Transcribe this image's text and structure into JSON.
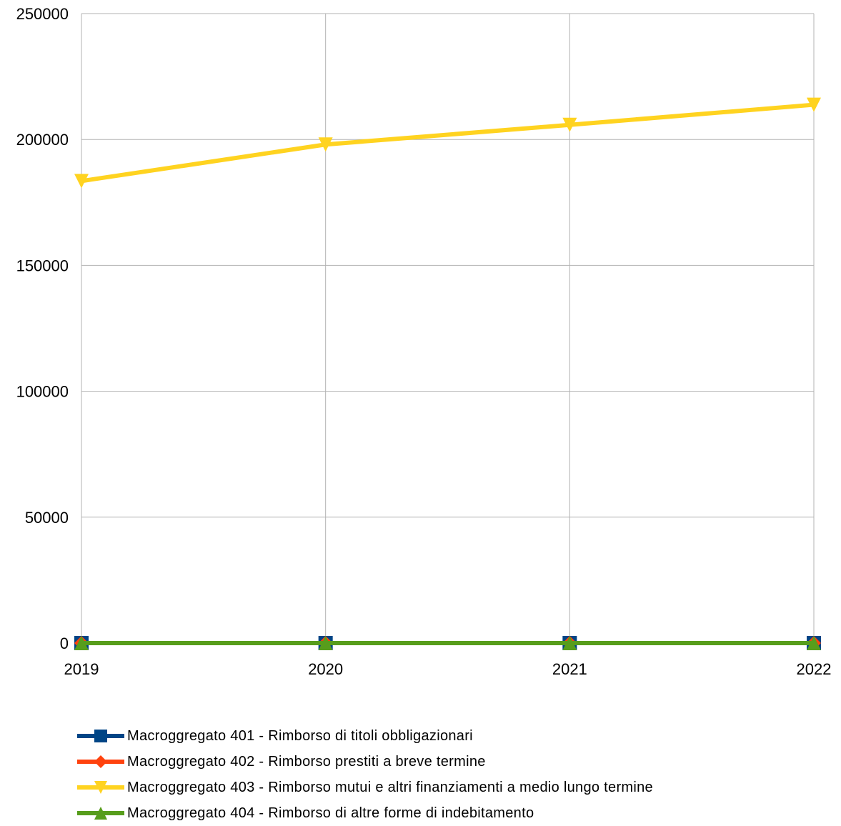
{
  "chart_data": {
    "type": "line",
    "categories": [
      "2019",
      "2020",
      "2021",
      "2022"
    ],
    "ylim": [
      0,
      250000
    ],
    "yticks": [
      0,
      50000,
      100000,
      150000,
      200000,
      250000
    ],
    "grid": true,
    "legend_position": "bottom",
    "series": [
      {
        "name": "Macroggregato 401 - Rimborso di titoli obbligazionari",
        "values": [
          0,
          0,
          0,
          0
        ],
        "color": "#004586",
        "marker": "square"
      },
      {
        "name": "Macroggregato 402 - Rimborso prestiti a breve termine",
        "values": [
          0,
          0,
          0,
          0
        ],
        "color": "#ff420e",
        "marker": "diamond"
      },
      {
        "name": "Macroggregato 403 - Rimborso mutui e altri finanziamenti a medio lungo termine",
        "values": [
          183500,
          198000,
          205800,
          213800
        ],
        "color": "#ffd320",
        "marker": "triangle-down"
      },
      {
        "name": "Macroggregato 404 - Rimborso di altre forme di indebitamento",
        "values": [
          0,
          0,
          0,
          0
        ],
        "color": "#579d1c",
        "marker": "triangle-up"
      }
    ]
  }
}
